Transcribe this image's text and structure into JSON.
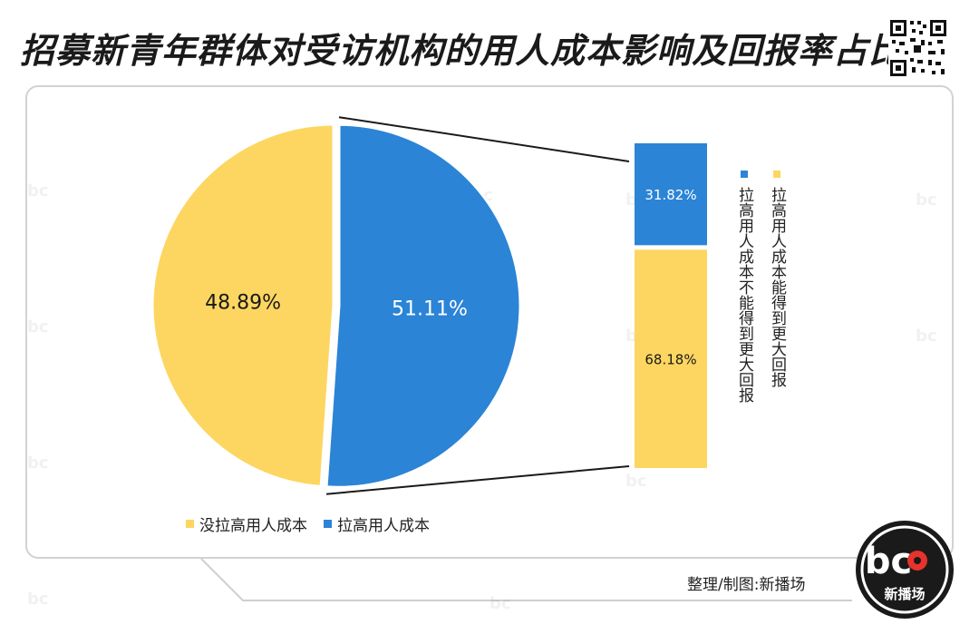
{
  "title": "招募新青年群体对受访机构的用人成本影响及回报率占比",
  "credit": "整理/制图:新播场",
  "logo_text": "新播场",
  "logo_letters": "bc",
  "colors": {
    "yellow": "#FDD661",
    "blue": "#2B84D6",
    "dark": "#1a1a1a"
  },
  "legend": [
    {
      "label": "没拉高用人成本",
      "color": "#FDD661"
    },
    {
      "label": "拉高用人成本",
      "color": "#2B84D6"
    }
  ],
  "bar_legend": [
    {
      "label": "拉高用人成本不能得到更大回报",
      "color": "#2B84D6"
    },
    {
      "label": "拉高用人成本能得到更大回报",
      "color": "#FDD661"
    }
  ],
  "chart_data": [
    {
      "type": "pie",
      "labels": [
        "没拉高用人成本",
        "拉高用人成本"
      ],
      "values": [
        48.89,
        51.11
      ],
      "value_labels": [
        "48.89%",
        "51.11%"
      ],
      "colors": [
        "#FDD661",
        "#2B84D6"
      ],
      "exploded": "拉高用人成本"
    },
    {
      "type": "bar",
      "stacked": true,
      "categories": [
        "拉高用人成本"
      ],
      "series": [
        {
          "name": "拉高用人成本能得到更大回报",
          "values": [
            68.18
          ],
          "label": "68.18%",
          "color": "#FDD661"
        },
        {
          "name": "拉高用人成本不能得到更大回报",
          "values": [
            31.82
          ],
          "label": "31.82%",
          "color": "#2B84D6"
        }
      ]
    }
  ]
}
